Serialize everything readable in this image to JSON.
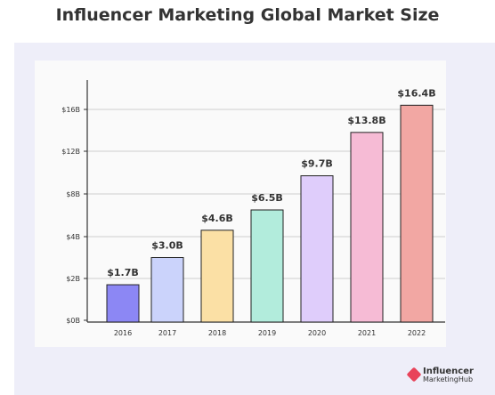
{
  "page_title": "Influencer Marketing Global Market Size",
  "brand": {
    "line1": "Influencer",
    "line2": "MarketingHub"
  },
  "colors": {
    "bars": [
      "#8c87f4",
      "#cbd3fb",
      "#fbe0a5",
      "#b2ecdc",
      "#dfcdfb",
      "#f6bbd5",
      "#f2a7a3"
    ],
    "outer_panel": "#eeeef9",
    "card": "#fafafa",
    "brand_accent": "#e8435a"
  },
  "chart_data": {
    "type": "bar",
    "categories": [
      "2016",
      "2017",
      "2018",
      "2019",
      "2020",
      "2021",
      "2022"
    ],
    "values": [
      1.7,
      3.0,
      4.6,
      6.5,
      9.7,
      13.8,
      16.4
    ],
    "data_labels": [
      "$1.7B",
      "$3.0B",
      "$4.6B",
      "$6.5B",
      "$9.7B",
      "$13.8B",
      "$16.4B"
    ],
    "y_ticks": [
      0,
      2,
      4,
      8,
      12,
      16
    ],
    "y_tick_labels": [
      "$0B",
      "$2B",
      "$4B",
      "$8B",
      "$12B",
      "$16B"
    ],
    "title": "Influencer Marketing Global Market Size",
    "xlabel": "",
    "ylabel": "",
    "grid": true,
    "legend": "none"
  }
}
